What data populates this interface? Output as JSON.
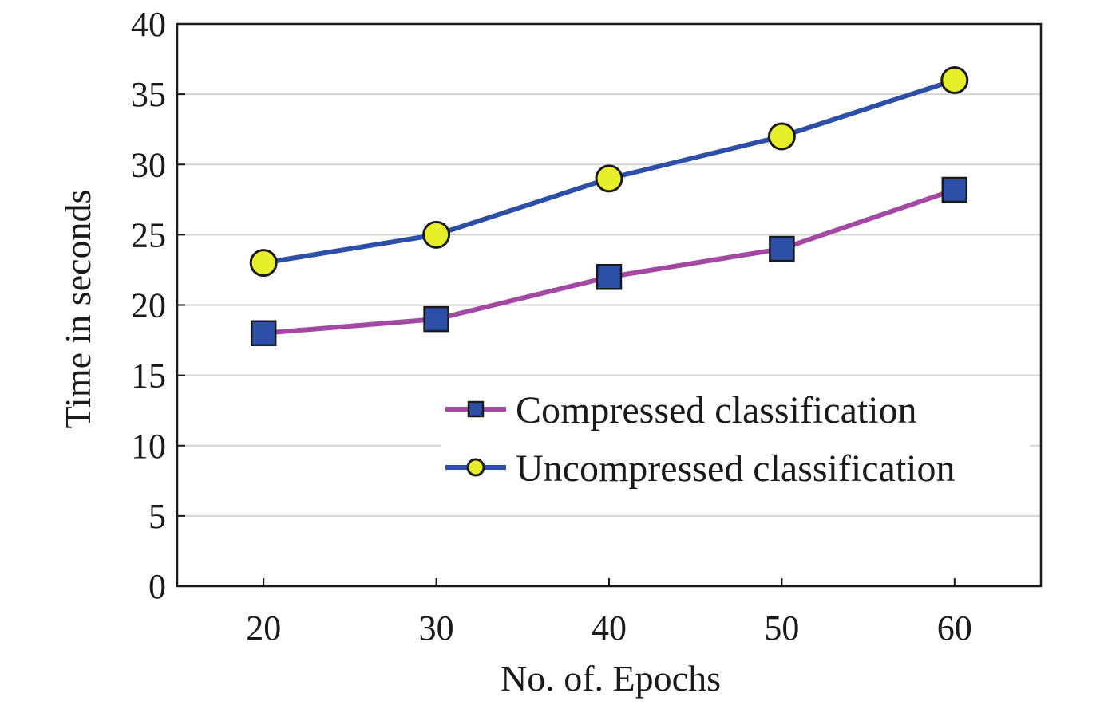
{
  "chart_data": {
    "type": "line",
    "xlabel": "No. of. Epochs",
    "ylabel": "Time in seconds",
    "x": [
      20,
      30,
      40,
      50,
      60
    ],
    "ylim": [
      0,
      40
    ],
    "yticks": [
      0,
      5,
      10,
      15,
      20,
      25,
      30,
      35,
      40
    ],
    "grid": "horizontal",
    "legend_position": "lower-right",
    "series": [
      {
        "name": "Compressed classification",
        "values": [
          18,
          19,
          22,
          24,
          28.2
        ],
        "line_color": "#a349a4",
        "marker": "square",
        "marker_color": "#2e4fa8"
      },
      {
        "name": "Uncompressed classification",
        "values": [
          23,
          25,
          29,
          32,
          36
        ],
        "line_color": "#2e4fa8",
        "marker": "circle",
        "marker_color": "#e6ef2a"
      }
    ]
  }
}
